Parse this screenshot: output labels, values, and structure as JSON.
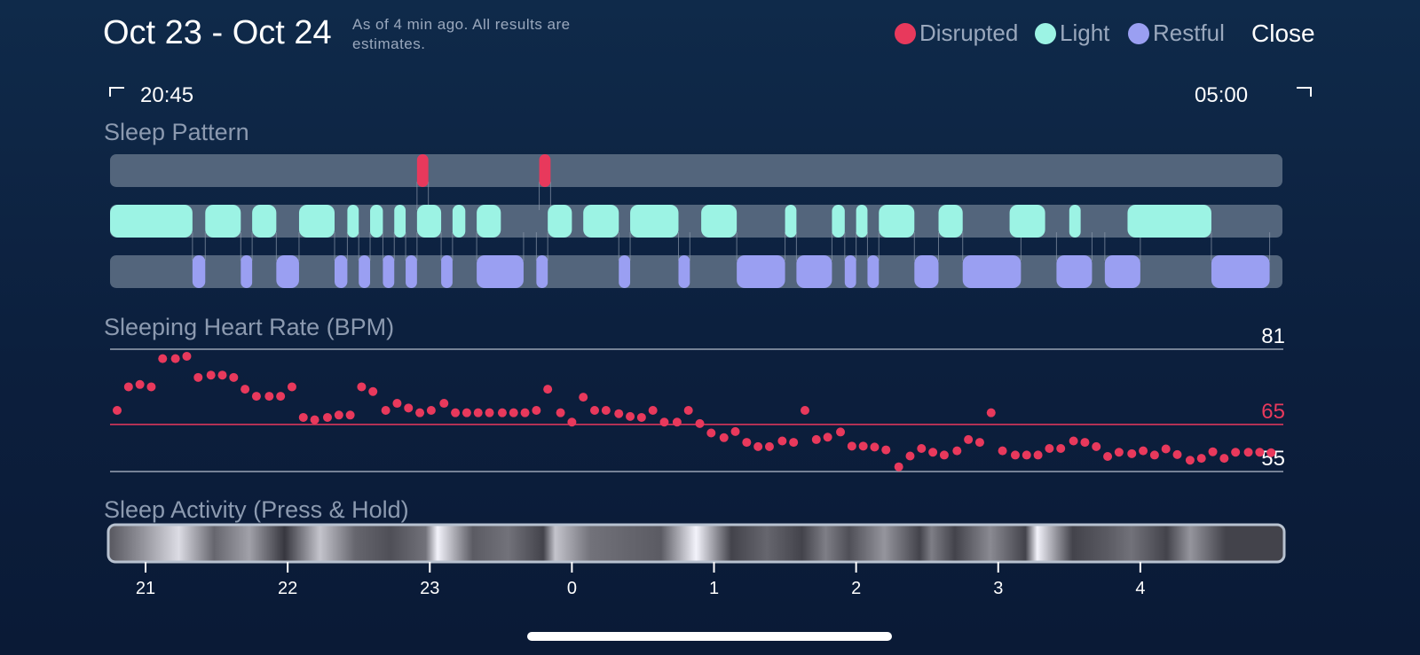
{
  "header": {
    "title": "Oct 23 - Oct 24",
    "subtitle": "As of 4 min ago. All results are estimates.",
    "close_label": "Close"
  },
  "legend": [
    {
      "label": "Disrupted",
      "color": "#e8395c"
    },
    {
      "label": "Light",
      "color": "#9cf3e4"
    },
    {
      "label": "Restful",
      "color": "#9a9ff2"
    }
  ],
  "range": {
    "start": "20:45",
    "end": "05:00"
  },
  "colors": {
    "disrupted": "#e8395c",
    "light": "#9cf3e4",
    "restful": "#9a9ff2",
    "track": "#53657c",
    "grid": "#9aa4b4",
    "ref_line": "#e8395c"
  },
  "sleep_pattern": {
    "title": "Sleep Pattern",
    "time_start_hours": 20.75,
    "time_end_hours": 29.0,
    "disrupted": [
      [
        22.91,
        22.99
      ],
      [
        23.77,
        23.85
      ]
    ],
    "light": [
      [
        20.75,
        21.33
      ],
      [
        21.42,
        21.67
      ],
      [
        21.75,
        21.92
      ],
      [
        22.08,
        22.33
      ],
      [
        22.42,
        22.5
      ],
      [
        22.58,
        22.67
      ],
      [
        22.75,
        22.83
      ],
      [
        22.91,
        23.08
      ],
      [
        23.16,
        23.25
      ],
      [
        23.33,
        23.5
      ],
      [
        23.83,
        24.0
      ],
      [
        24.08,
        24.33
      ],
      [
        24.41,
        24.75
      ],
      [
        24.91,
        25.16
      ],
      [
        25.5,
        25.58
      ],
      [
        25.83,
        25.92
      ],
      [
        26.0,
        26.08
      ],
      [
        26.16,
        26.41
      ],
      [
        26.58,
        26.75
      ],
      [
        27.08,
        27.33
      ],
      [
        27.5,
        27.58
      ],
      [
        27.91,
        28.5
      ]
    ],
    "restful": [
      [
        21.33,
        21.42
      ],
      [
        21.67,
        21.75
      ],
      [
        21.92,
        22.08
      ],
      [
        22.33,
        22.42
      ],
      [
        22.5,
        22.58
      ],
      [
        22.67,
        22.75
      ],
      [
        22.83,
        22.91
      ],
      [
        23.08,
        23.16
      ],
      [
        23.33,
        23.66
      ],
      [
        23.75,
        23.83
      ],
      [
        24.33,
        24.41
      ],
      [
        24.75,
        24.83
      ],
      [
        25.16,
        25.5
      ],
      [
        25.58,
        25.83
      ],
      [
        25.92,
        26.0
      ],
      [
        26.08,
        26.16
      ],
      [
        26.41,
        26.58
      ],
      [
        26.75,
        27.16
      ],
      [
        27.41,
        27.66
      ],
      [
        27.75,
        28.0
      ],
      [
        28.5,
        28.91
      ]
    ]
  },
  "chart_data": {
    "type": "scatter",
    "title": "Sleeping Heart Rate (BPM)",
    "y_ticks": [
      "81",
      "65",
      "55"
    ],
    "ylim": [
      55,
      81
    ],
    "reference_line": 65,
    "x_range_hours": [
      20.75,
      29.0
    ],
    "x_ticks": [
      "21",
      "22",
      "23",
      "0",
      "1",
      "2",
      "3",
      "4"
    ],
    "x_tick_hours": [
      21,
      22,
      23,
      24,
      25,
      26,
      27,
      28
    ],
    "series": [
      {
        "color": "#e8395c",
        "x": [
          20.8,
          20.88,
          20.96,
          21.04,
          21.12,
          21.21,
          21.29,
          21.37,
          21.46,
          21.54,
          21.62,
          21.7,
          21.78,
          21.87,
          21.95,
          22.03,
          22.11,
          22.19,
          22.28,
          22.36,
          22.44,
          22.52,
          22.6,
          22.69,
          22.77,
          22.85,
          22.93,
          23.01,
          23.1,
          23.18,
          23.26,
          23.34,
          23.42,
          23.51,
          23.59,
          23.67,
          23.75,
          23.83,
          23.92,
          24.0,
          24.08,
          24.16,
          24.24,
          24.33,
          24.41,
          24.49,
          24.57,
          24.65,
          24.74,
          24.82,
          24.9,
          24.98,
          25.07,
          25.15,
          25.23,
          25.31,
          25.39,
          25.48,
          25.56,
          25.64,
          25.72,
          25.8,
          25.89,
          25.97,
          26.05,
          26.13,
          26.21,
          26.3,
          26.38,
          26.46,
          26.54,
          26.62,
          26.71,
          26.79,
          26.87,
          26.95,
          27.03,
          27.12,
          27.2,
          27.28,
          27.36,
          27.44,
          27.53,
          27.61,
          27.69,
          27.77,
          27.85,
          27.94,
          28.02,
          28.1,
          28.18,
          28.26,
          28.35,
          28.43,
          28.51,
          28.59,
          28.67,
          28.76,
          28.84,
          28.92
        ],
        "y": [
          68,
          73,
          73.5,
          73,
          79,
          79,
          79.5,
          75,
          75.5,
          75.5,
          75,
          72.5,
          71,
          71,
          71,
          73,
          66.5,
          66,
          66.5,
          67,
          67,
          73,
          72,
          68,
          69.5,
          68.5,
          67.5,
          68,
          69.5,
          67.5,
          67.5,
          67.5,
          67.5,
          67.5,
          67.5,
          67.5,
          68,
          72.5,
          67.5,
          65.5,
          70.8,
          68,
          68,
          67.3,
          66.7,
          66.5,
          68,
          65.5,
          65.5,
          68,
          65.2,
          63.2,
          62.2,
          63.5,
          61.2,
          60.3,
          60.3,
          61.5,
          61.2,
          68,
          61.8,
          62.3,
          63.4,
          60.4,
          60.4,
          60.2,
          59.6,
          56,
          58.3,
          59.9,
          59.1,
          58.5,
          59.4,
          61.8,
          61.2,
          67.5,
          59.4,
          58.5,
          58.5,
          58.5,
          59.9,
          59.9,
          61.5,
          61.2,
          60.3,
          58.2,
          59.1,
          58.8,
          59.4,
          58.5,
          59.8,
          58.6,
          57.4,
          57.8,
          59.2,
          57.8,
          59.1,
          59.1,
          59.1,
          59.0
        ]
      }
    ]
  },
  "sleep_activity": {
    "title": "Sleep Activity (Press & Hold)",
    "intensity": [
      [
        0.0,
        0.28
      ],
      [
        0.03,
        0.55
      ],
      [
        0.06,
        0.85
      ],
      [
        0.09,
        0.35
      ],
      [
        0.12,
        0.6
      ],
      [
        0.15,
        0.15
      ],
      [
        0.18,
        0.75
      ],
      [
        0.21,
        0.35
      ],
      [
        0.24,
        0.25
      ],
      [
        0.27,
        0.4
      ],
      [
        0.28,
        0.95
      ],
      [
        0.31,
        0.3
      ],
      [
        0.34,
        0.4
      ],
      [
        0.37,
        0.2
      ],
      [
        0.38,
        0.75
      ],
      [
        0.41,
        0.4
      ],
      [
        0.44,
        0.35
      ],
      [
        0.47,
        0.3
      ],
      [
        0.5,
        0.95
      ],
      [
        0.53,
        0.2
      ],
      [
        0.56,
        0.35
      ],
      [
        0.59,
        0.2
      ],
      [
        0.61,
        0.45
      ],
      [
        0.63,
        0.25
      ],
      [
        0.66,
        0.55
      ],
      [
        0.69,
        0.2
      ],
      [
        0.7,
        0.45
      ],
      [
        0.72,
        0.2
      ],
      [
        0.75,
        0.5
      ],
      [
        0.78,
        0.2
      ],
      [
        0.79,
        0.95
      ],
      [
        0.82,
        0.2
      ],
      [
        0.85,
        0.3
      ],
      [
        0.87,
        0.4
      ],
      [
        0.9,
        0.2
      ],
      [
        0.92,
        0.55
      ],
      [
        0.95,
        0.2
      ],
      [
        1.0,
        0.2
      ]
    ]
  },
  "chart_labels": {
    "heart_rate_title": "Sleeping Heart Rate (BPM)",
    "activity_title": "Sleep Activity (Press & Hold)"
  }
}
